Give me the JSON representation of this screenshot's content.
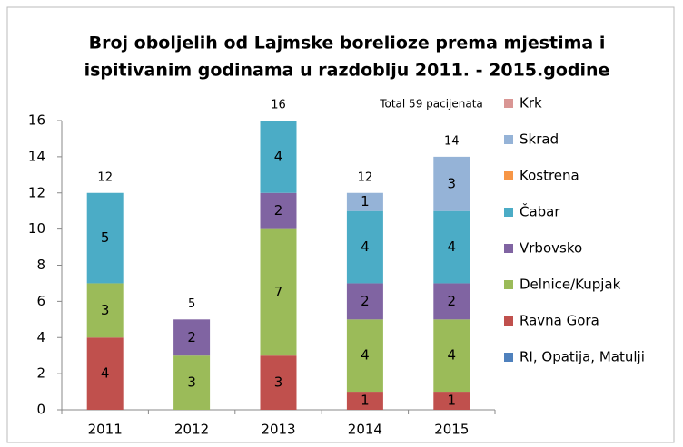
{
  "chart_data": {
    "type": "stacked_bar",
    "title": [
      "Broj oboljelih od Lajmske borelioze prema mjestima i",
      "ispitivanim godinama u razdoblju  2011. - 2015.godine"
    ],
    "annotation": "Total 59 pacijenata",
    "categories": [
      "2011",
      "2012",
      "2013",
      "2014",
      "2015"
    ],
    "series": [
      {
        "name": "RI, Opatija, Matulji",
        "color": "#4f81bd",
        "values": [
          0,
          0,
          0,
          0,
          0
        ]
      },
      {
        "name": "Ravna Gora",
        "color": "#c0504d",
        "values": [
          4,
          0,
          3,
          1,
          1
        ]
      },
      {
        "name": "Delnice/Kupjak",
        "color": "#9bbb59",
        "values": [
          3,
          3,
          7,
          4,
          4
        ]
      },
      {
        "name": "Vrbovsko",
        "color": "#8064a2",
        "values": [
          0,
          2,
          2,
          2,
          2
        ]
      },
      {
        "name": "Čabar",
        "color": "#4bacc6",
        "values": [
          5,
          0,
          4,
          4,
          4
        ]
      },
      {
        "name": "Kostrena",
        "color": "#f79646",
        "values": [
          0,
          0,
          0,
          0,
          0
        ]
      },
      {
        "name": "Skrad",
        "color": "#95b3d7",
        "values": [
          0,
          0,
          0,
          1,
          3
        ]
      },
      {
        "name": "Krk",
        "color": "#d99694",
        "values": [
          0,
          0,
          0,
          0,
          0
        ]
      }
    ],
    "totals": [
      12,
      5,
      16,
      12,
      14
    ],
    "ylim": [
      0,
      16
    ],
    "yticks": [
      0,
      2,
      4,
      6,
      8,
      10,
      12,
      14,
      16
    ],
    "grid": false,
    "legend": "right"
  }
}
